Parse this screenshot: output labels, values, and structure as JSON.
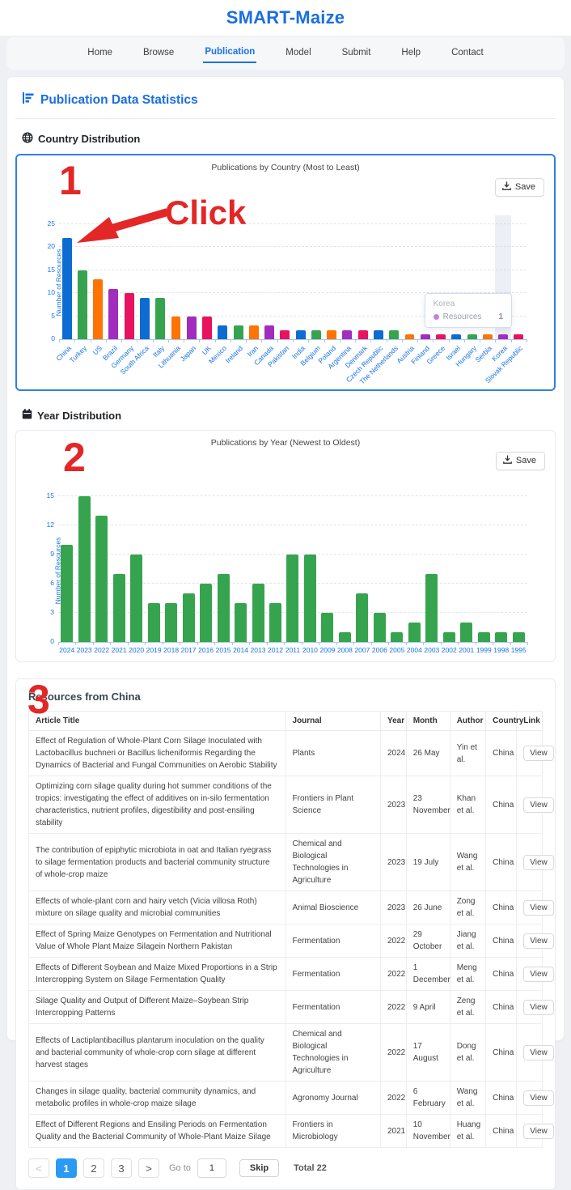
{
  "app": {
    "title": "SMART-Maize"
  },
  "nav": {
    "items": [
      {
        "label": "Home",
        "active": false
      },
      {
        "label": "Browse",
        "active": false
      },
      {
        "label": "Publication",
        "active": true
      },
      {
        "label": "Model",
        "active": false
      },
      {
        "label": "Submit",
        "active": false
      },
      {
        "label": "Help",
        "active": false
      },
      {
        "label": "Contact",
        "active": false
      }
    ]
  },
  "page": {
    "heading": "Publication Data Statistics",
    "sections": {
      "country": {
        "heading": "Country Distribution"
      },
      "year": {
        "heading": "Year Distribution"
      }
    }
  },
  "save_button": {
    "label": "Save"
  },
  "annotations": {
    "step_country": "1",
    "step_year": "2",
    "step_table": "3",
    "click_label": "Click",
    "color": "#e32626"
  },
  "chart_data": [
    {
      "type": "bar",
      "title": "Publications by Country (Most to Least)",
      "ylabel": "Number of Resources",
      "ylim": [
        0,
        25
      ],
      "yticks": [
        0,
        5,
        10,
        15,
        20,
        25
      ],
      "grid": true,
      "categories": [
        "China",
        "Turkey",
        "US",
        "Brazil",
        "Germany",
        "South Africa",
        "Italy",
        "Lithuania",
        "Japan",
        "UK",
        "Mexico",
        "Ireland",
        "Iran",
        "Canada",
        "Pakistan",
        "India",
        "Belgium",
        "Poland",
        "Argentina",
        "Denmark",
        "Czech Republic",
        "The Netherlands",
        "Austria",
        "Finland",
        "Greece",
        "Israel",
        "Hungary",
        "Serbia",
        "Korea",
        "Slovak Republic"
      ],
      "values": [
        22,
        15,
        13,
        11,
        10,
        9,
        9,
        5,
        5,
        5,
        3,
        3,
        3,
        3,
        2,
        2,
        2,
        2,
        2,
        2,
        2,
        2,
        1,
        1,
        1,
        1,
        1,
        1,
        1,
        1
      ],
      "bar_colors": [
        "#0d6cd1",
        "#36a44e",
        "#fe7301",
        "#a22cbe",
        "#e8125f"
      ],
      "tooltip": {
        "title": "Korea",
        "series": "Resources",
        "value": "1",
        "marker_color": "#c583d8"
      },
      "highlight_category": "Korea"
    },
    {
      "type": "bar",
      "title": "Publications by Year (Newest to Oldest)",
      "ylabel": "Number of Resources",
      "ylim": [
        0,
        15
      ],
      "yticks": [
        0,
        3,
        6,
        9,
        12,
        15
      ],
      "grid": true,
      "categories": [
        "2024",
        "2023",
        "2022",
        "2021",
        "2020",
        "2019",
        "2018",
        "2017",
        "2016",
        "2015",
        "2014",
        "2013",
        "2012",
        "2011",
        "2010",
        "2009",
        "2008",
        "2007",
        "2006",
        "2005",
        "2004",
        "2003",
        "2002",
        "2001",
        "1999",
        "1998",
        "1995"
      ],
      "values": [
        10,
        15,
        13,
        7,
        9,
        4,
        4,
        5,
        6,
        7,
        4,
        6,
        4,
        9,
        9,
        3,
        1,
        5,
        3,
        1,
        2,
        7,
        1,
        2,
        1,
        1,
        1
      ],
      "bar_colors": [
        "#36a44e"
      ]
    }
  ],
  "table": {
    "title": "Resources from China",
    "columns": [
      "Article Title",
      "Journal",
      "Year",
      "Month",
      "Author",
      "Country",
      "Link"
    ],
    "link_label": "View",
    "rows": [
      {
        "title": "Effect of Regulation of Whole-Plant Corn Silage Inoculated with Lactobacillus buchneri or Bacillus licheniformis Regarding the Dynamics of Bacterial and Fungal Communities on Aerobic Stability",
        "journal": "Plants",
        "year": "2024",
        "month": "26 May",
        "author": "Yin et al.",
        "country": "China"
      },
      {
        "title": "Optimizing corn silage quality during hot summer conditions of the tropics: investigating the effect of additives on in-silo fermentation characteristics, nutrient profiles, digestibility and post-ensiling stability",
        "journal": "Frontiers in Plant Science",
        "year": "2023",
        "month": "23 November",
        "author": "Khan et al.",
        "country": "China"
      },
      {
        "title": "The contribution of epiphytic microbiota in oat and Italian ryegrass to silage fermentation products and bacterial community structure of whole-crop maize",
        "journal": "Chemical and Biological Technologies in Agriculture",
        "year": "2023",
        "month": "19 July",
        "author": "Wang et al.",
        "country": "China"
      },
      {
        "title": "Effects of whole-plant corn and hairy vetch (Vicia villosa Roth) mixture on silage quality and microbial communities",
        "journal": "Animal Bioscience",
        "year": "2023",
        "month": "26 June",
        "author": "Zong et al.",
        "country": "China"
      },
      {
        "title": "Effect of Spring Maize Genotypes on Fermentation and Nutritional Value of Whole Plant Maize Silagein Northern Pakistan",
        "journal": "Fermentation",
        "year": "2022",
        "month": "29 October",
        "author": "Jiang et al.",
        "country": "China"
      },
      {
        "title": "Effects of Different Soybean and Maize Mixed Proportions in a Strip Intercropping System on Silage Fermentation Quality",
        "journal": "Fermentation",
        "year": "2022",
        "month": "1 December",
        "author": "Meng et al.",
        "country": "China"
      },
      {
        "title": "Silage Quality and Output of Different Maize–Soybean Strip Intercropping Patterns",
        "journal": "Fermentation",
        "year": "2022",
        "month": "9 April",
        "author": "Zeng et al.",
        "country": "China"
      },
      {
        "title": "Effects of Lactiplantibacillus plantarum inoculation on the quality and bacterial community of whole-crop corn silage at different harvest stages",
        "journal": "Chemical and Biological Technologies in Agriculture",
        "year": "2022",
        "month": "17 August",
        "author": "Dong et al.",
        "country": "China"
      },
      {
        "title": "Changes in silage quality, bacterial community dynamics, and metabolic profiles in whole-crop maize silage",
        "journal": "Agronomy Journal",
        "year": "2022",
        "month": "6 February",
        "author": "Wang et al.",
        "country": "China"
      },
      {
        "title": "Effect of Different Regions and Ensiling Periods on Fermentation Quality and the Bacterial Community of Whole-Plant Maize Silage",
        "journal": "Frontiers in Microbiology",
        "year": "2021",
        "month": "10 November",
        "author": "Huang et al.",
        "country": "China"
      }
    ]
  },
  "pagination": {
    "prev_label": "<",
    "next_label": ">",
    "pages": [
      "1",
      "2",
      "3"
    ],
    "active_page": "1",
    "goto_label": "Go to",
    "goto_value": "1",
    "skip_label": "Skip",
    "total_label": "Total 22"
  }
}
